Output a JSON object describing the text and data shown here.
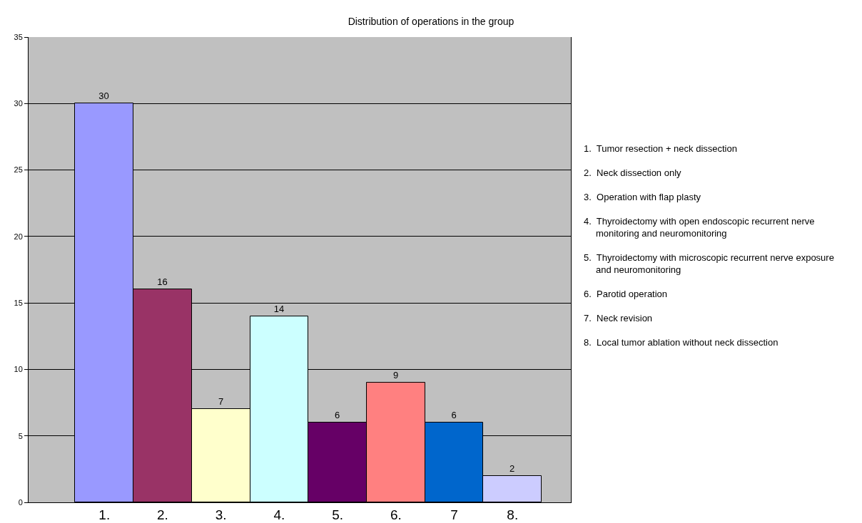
{
  "chart_data": {
    "type": "bar",
    "title": "Distribution of operations in the group",
    "categories": [
      "1.",
      "2.",
      "3.",
      "4.",
      "5.",
      "6.",
      "7",
      "8."
    ],
    "values": [
      30,
      16,
      7,
      14,
      6,
      9,
      6,
      2
    ],
    "colors": [
      "#9999ff",
      "#993366",
      "#ffffcc",
      "#ccffff",
      "#660066",
      "#ff8080",
      "#0066cc",
      "#ccccff"
    ],
    "ylim": [
      0,
      35
    ],
    "yticks": [
      0,
      5,
      10,
      15,
      20,
      25,
      30,
      35
    ],
    "grid": "y",
    "data_labels": true,
    "annotations": [
      "1.  Tumor resection + neck dissection",
      "2.  Neck dissection only",
      "3.  Operation with flap plasty",
      "4.  Thyroidectomy with open endoscopic recurrent nerve monitoring and neuromonitoring",
      "5.  Thyroidectomy with microscopic recurrent nerve exposure and neuromonitoring",
      "6.  Parotid operation",
      "7.  Neck revision",
      "8.  Local tumor ablation without neck dissection"
    ]
  }
}
